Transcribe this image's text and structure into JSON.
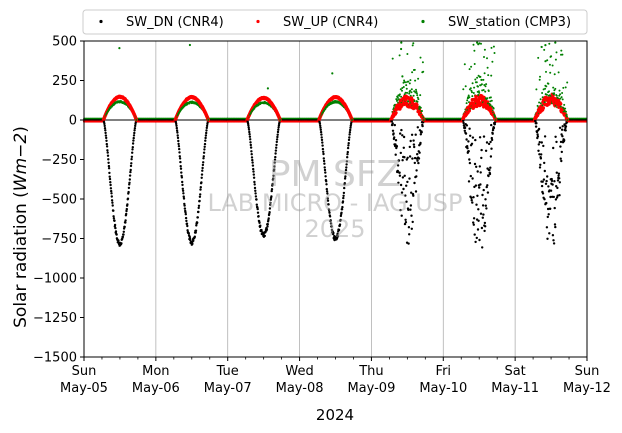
{
  "chart_data": {
    "type": "scatter",
    "xlabel": "2024",
    "ylabel": "Solar radiation (Wm−2)",
    "ylabel_parts": {
      "prefix": "Solar radiation (",
      "unit": "Wm",
      "exp": "−2",
      "suffix": ")"
    },
    "ylim": [
      -1500,
      500
    ],
    "yticks": [
      500,
      250,
      0,
      -250,
      -500,
      -750,
      -1000,
      -1250,
      -1500
    ],
    "ytick_labels": [
      "500",
      "250",
      "0",
      "−250",
      "−500",
      "−750",
      "−1000",
      "−1250",
      "−1500"
    ],
    "xlim": [
      "2024-05-05",
      "2024-05-12"
    ],
    "xticks": [
      {
        "date": "2024-05-05",
        "day": "Sun",
        "label": "May-05"
      },
      {
        "date": "2024-05-06",
        "day": "Mon",
        "label": "May-06"
      },
      {
        "date": "2024-05-07",
        "day": "Tue",
        "label": "May-07"
      },
      {
        "date": "2024-05-08",
        "day": "Wed",
        "label": "May-08"
      },
      {
        "date": "2024-05-09",
        "day": "Thu",
        "label": "May-09"
      },
      {
        "date": "2024-05-10",
        "day": "Fri",
        "label": "May-10"
      },
      {
        "date": "2024-05-11",
        "day": "Sat",
        "label": "May-11"
      },
      {
        "date": "2024-05-12",
        "day": "Sun",
        "label": "May-12"
      }
    ],
    "grid": "vertical",
    "legend_position": "top",
    "series": [
      {
        "name": "SW_DN (CNR4)",
        "color": "#000000",
        "daily_peak": [
          -800,
          -790,
          -745,
          -765,
          -810,
          -870,
          -830
        ],
        "sunrise_hour": 6.5,
        "sunset_hour": 17.5,
        "noon_hour": 12.0
      },
      {
        "name": "SW_UP (CNR4)",
        "color": "#ff0000",
        "daily_peak": [
          150,
          148,
          143,
          148,
          140,
          145,
          150
        ]
      },
      {
        "name": "SW_station (CMP3)",
        "color": "#008000",
        "daily_peak": [
          115,
          112,
          110,
          115,
          190,
          200,
          180
        ],
        "max_values": [
          455,
          475,
          200,
          295,
          490,
          490,
          490
        ]
      }
    ],
    "watermark": [
      "PM SFZ",
      "LAB MICRO - IAG USP",
      "2025"
    ]
  }
}
